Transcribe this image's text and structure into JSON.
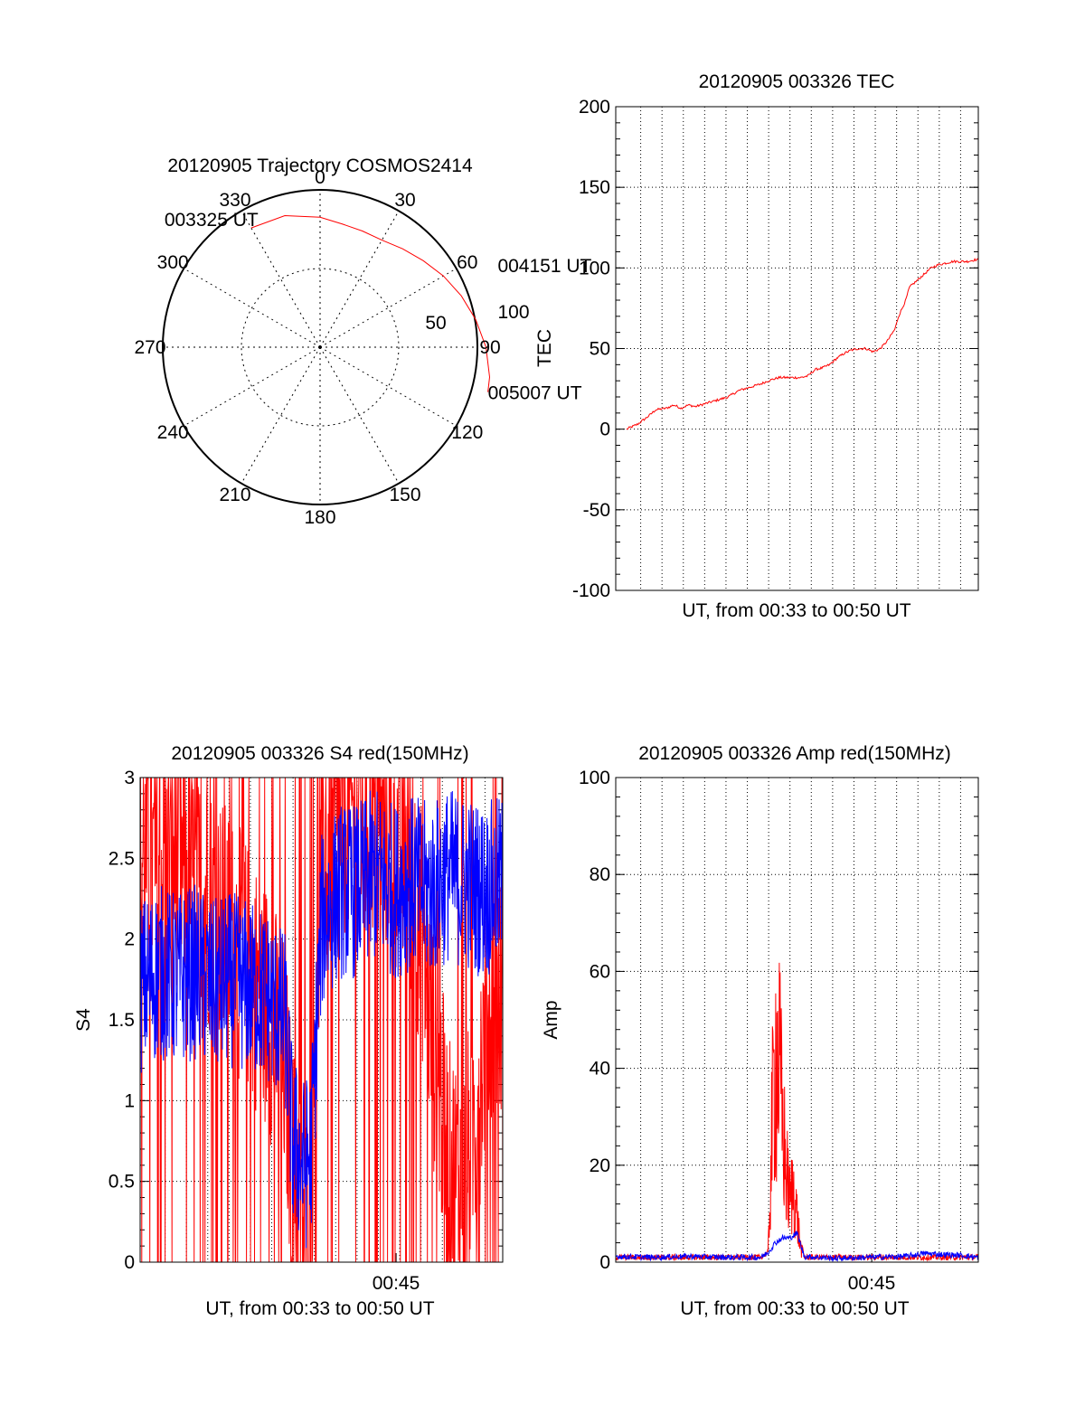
{
  "colors": {
    "red": "#ff0000",
    "blue": "#0000ff",
    "axis": "#000000",
    "grid": "#000000"
  },
  "chart_data": [
    {
      "type": "polar",
      "title": "20120905 Trajectory COSMOS2414",
      "angle_labels": [
        "0",
        "30",
        "60",
        "90",
        "120",
        "150",
        "180",
        "210",
        "240",
        "270",
        "300",
        "330"
      ],
      "radius_labels": [
        "50",
        "100"
      ],
      "rlim": [
        0,
        100
      ],
      "grid": true,
      "series": [
        {
          "color": "#ff0000",
          "points": [
            [
              -30,
              88
            ],
            [
              -15,
              87
            ],
            [
              0,
              83
            ],
            [
              10,
              80
            ],
            [
              20,
              79
            ],
            [
              30,
              79
            ],
            [
              40,
              82
            ],
            [
              50,
              86
            ],
            [
              60,
              91
            ],
            [
              70,
              96
            ],
            [
              80,
              101
            ],
            [
              90,
              106
            ],
            [
              100,
              110
            ],
            [
              105,
              111
            ]
          ]
        }
      ],
      "annotations": [
        {
          "text": "003325 UT",
          "angle": -30,
          "r": 88
        },
        {
          "text": "004151 UT",
          "angle": 60,
          "r": 91
        },
        {
          "text": "005007 UT",
          "angle": 105,
          "r": 111
        }
      ]
    },
    {
      "type": "line",
      "title": "20120905 003326 TEC",
      "xlabel": "UT, from 00:33 to 00:50 UT",
      "ylabel": "TEC",
      "xlim": [
        0,
        1
      ],
      "ylim": [
        -100,
        200
      ],
      "yticks": [
        "-100",
        "-50",
        "0",
        "50",
        "100",
        "150",
        "200"
      ],
      "grid": true,
      "series": [
        {
          "color": "#ff0000",
          "x": [
            0.03,
            0.06,
            0.09,
            0.11,
            0.14,
            0.16,
            0.18,
            0.2,
            0.22,
            0.25,
            0.28,
            0.31,
            0.34,
            0.37,
            0.4,
            0.42,
            0.45,
            0.48,
            0.51,
            0.53,
            0.55,
            0.57,
            0.59,
            0.61,
            0.63,
            0.65,
            0.67,
            0.69,
            0.71,
            0.73,
            0.75,
            0.77,
            0.78,
            0.8,
            0.81,
            0.83,
            0.85,
            0.87,
            0.89,
            0.91,
            0.93,
            0.95,
            0.97,
            0.99,
            1.0
          ],
          "y": [
            0,
            3,
            8,
            12,
            13,
            15,
            13,
            15,
            14,
            16,
            18,
            20,
            24,
            26,
            28,
            30,
            32,
            32,
            32,
            33,
            37,
            38,
            40,
            44,
            47,
            49,
            50,
            50,
            48,
            50,
            55,
            62,
            70,
            80,
            88,
            92,
            96,
            100,
            102,
            103,
            104,
            104,
            104,
            105,
            105
          ]
        }
      ]
    },
    {
      "type": "line",
      "title": "20120905 003326 S4 red(150MHz)",
      "xlabel": "UT, from 00:33 to 00:50 UT",
      "ylabel": "S4",
      "xlim": [
        0,
        1
      ],
      "ylim": [
        0,
        3
      ],
      "yticks": [
        "0",
        "0.5",
        "1",
        "1.5",
        "2",
        "2.5",
        "3"
      ],
      "xtick_label": "00:45",
      "xtick_pos": 0.706,
      "grid": true,
      "series": [
        {
          "color": "#ff0000",
          "noise": "high",
          "x": [
            0.0,
            0.05,
            0.1,
            0.15,
            0.2,
            0.25,
            0.3,
            0.35,
            0.4,
            0.42,
            0.45,
            0.47,
            0.5,
            0.55,
            0.6,
            0.65,
            0.7,
            0.75,
            0.78,
            0.8,
            0.83,
            0.85,
            0.88,
            0.9,
            0.93,
            0.95,
            0.97,
            1.0
          ],
          "y": [
            2.5,
            2.4,
            2.5,
            2.3,
            2.2,
            2.0,
            1.8,
            1.6,
            1.2,
            0.6,
            0.25,
            0.4,
            2.5,
            2.7,
            2.8,
            2.8,
            2.6,
            2.4,
            2.0,
            1.5,
            1.0,
            0.6,
            0.5,
            0.6,
            1.0,
            1.4,
            1.6,
            1.6
          ]
        },
        {
          "color": "#0000ff",
          "noise": "mid",
          "x": [
            0.0,
            0.05,
            0.1,
            0.15,
            0.2,
            0.25,
            0.3,
            0.35,
            0.4,
            0.42,
            0.45,
            0.47,
            0.5,
            0.55,
            0.6,
            0.65,
            0.7,
            0.75,
            0.8,
            0.85,
            0.9,
            0.95,
            1.0
          ],
          "y": [
            1.7,
            1.8,
            1.75,
            1.8,
            1.7,
            1.75,
            1.7,
            1.65,
            1.5,
            0.75,
            0.6,
            0.65,
            2.1,
            2.3,
            2.3,
            2.4,
            2.3,
            2.35,
            2.3,
            2.4,
            2.35,
            2.3,
            2.35
          ]
        }
      ]
    },
    {
      "type": "line",
      "title": "20120905 003326 Amp red(150MHz)",
      "xlabel": "UT, from 00:33 to 00:50 UT",
      "ylabel": "Amp",
      "xlim": [
        0,
        1
      ],
      "ylim": [
        0,
        100
      ],
      "yticks": [
        "0",
        "20",
        "40",
        "60",
        "80",
        "100"
      ],
      "xtick_label": "00:45",
      "xtick_pos": 0.706,
      "grid": true,
      "series": [
        {
          "color": "#ff0000",
          "noise": "spike",
          "x": [
            0.0,
            0.4,
            0.42,
            0.43,
            0.44,
            0.45,
            0.46,
            0.47,
            0.48,
            0.49,
            0.5,
            0.51,
            0.52,
            1.0
          ],
          "y": [
            1,
            1,
            2,
            40,
            70,
            65,
            45,
            30,
            20,
            25,
            15,
            5,
            1,
            1
          ]
        },
        {
          "color": "#0000ff",
          "noise": "low",
          "x": [
            0.0,
            0.1,
            0.2,
            0.3,
            0.4,
            0.42,
            0.44,
            0.46,
            0.48,
            0.5,
            0.52,
            0.6,
            0.7,
            0.8,
            0.85,
            0.9,
            0.95,
            1.0
          ],
          "y": [
            1.2,
            1.0,
            1.2,
            1.0,
            1.0,
            2,
            4,
            5,
            5,
            6,
            1.2,
            0.8,
            1.0,
            1.2,
            1.8,
            1.6,
            1.4,
            1.0
          ]
        }
      ]
    }
  ]
}
